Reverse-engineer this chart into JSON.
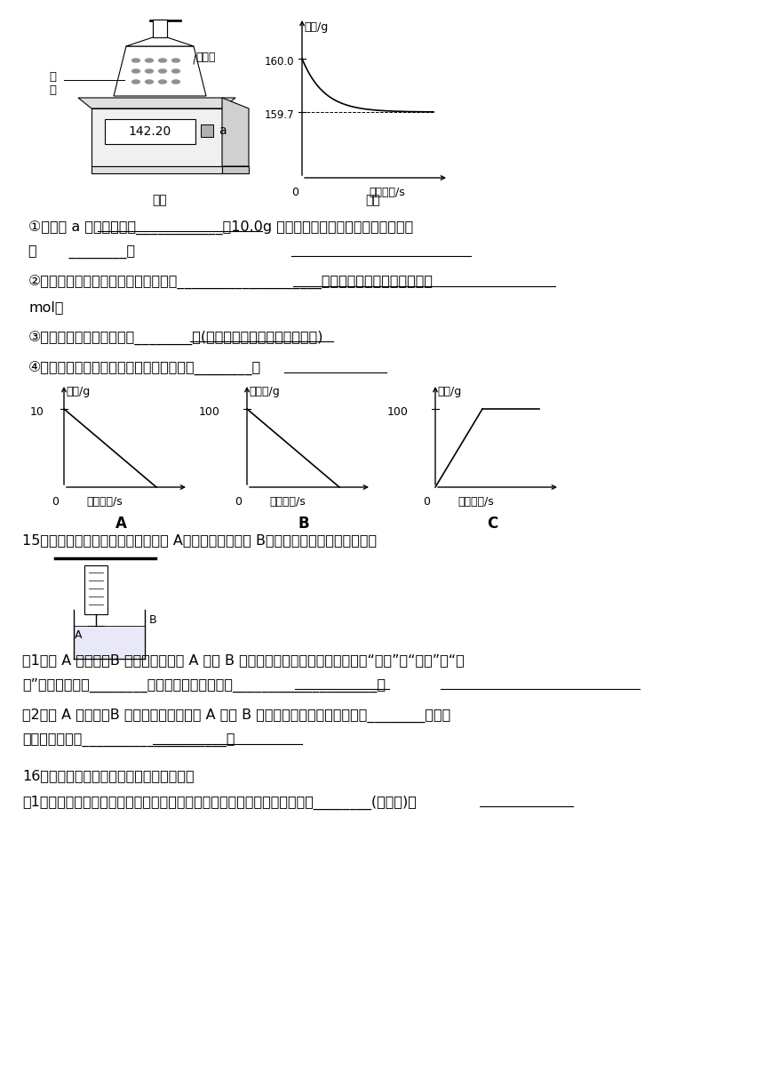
{
  "bg_color": "#ffffff",
  "text_color": "#000000",
  "fig_width": 8.6,
  "fig_height": 12.16,
  "dpi": 100,
  "scale_label": "142.20",
  "fig1_label": "图一",
  "fig2_label": "图二",
  "graph2_ylabel": "读数/g",
  "graph2_xlabel": "反应时间/s",
  "graphA_ylabel": "样品/g",
  "graphA_xlabel": "反应时间/s",
  "graphA_y0label": "10",
  "graphA_label": "A",
  "graphB_ylabel": "稀硫酸/g",
  "graphB_xlabel": "反应时间/s",
  "graphB_y0label": "100",
  "graphB_label": "B",
  "graphC_ylabel": "溶液/g",
  "graphC_xlabel": "反应时间/s",
  "graphC_y0label": "100",
  "graphC_label": "C",
  "q1_text": "①图一中 a 的仓器名称是____________。10.0g 样品转移到锥形瓶中需要使用的仓器",
  "q1_text2": "是       ________。",
  "q2_text": "②写出锥形瓶中发生反应的化学方程式____________________。反应生成氢气的物质的量是",
  "q2_text2": "mol。",
  "q3_text": "③样品中鐵粉的质量分数是________。(根据化学方程式进行列式计算)",
  "q4_text": "④根据锥形瓶中的反应绘制的图像正确的是________。",
  "q15_text": "15．如图所示，弹簧秤下挂着一重物 A，烧杯中盛有溶液 B，试根据要求回答下列问题：",
  "q15_1_text": "（1）若 A 为鐵块，B 为稀硫酸，则将 A 放入 B 中，过一会，弹簧秤的读数将（填“变大”、“变小”或“不",
  "q15_1_text2": "变”，下小题同）________，反应的化学方程式为____________________；",
  "q15_2_text": "（2）若 A 为鐵块，B 为硫酸铜溶液，则将 A 放入 B 中，过一会，弹簧秤的读数将________，反应",
  "q15_2_text2": "的化学方程式为____________________。",
  "q16_text": "16．分类类比是初中化学常用的学习方法。",
  "q16_1_text": "（1）初中化学有许多实验，若按照实验目的不同，找出一个与众不同的实验________(填字母)；"
}
